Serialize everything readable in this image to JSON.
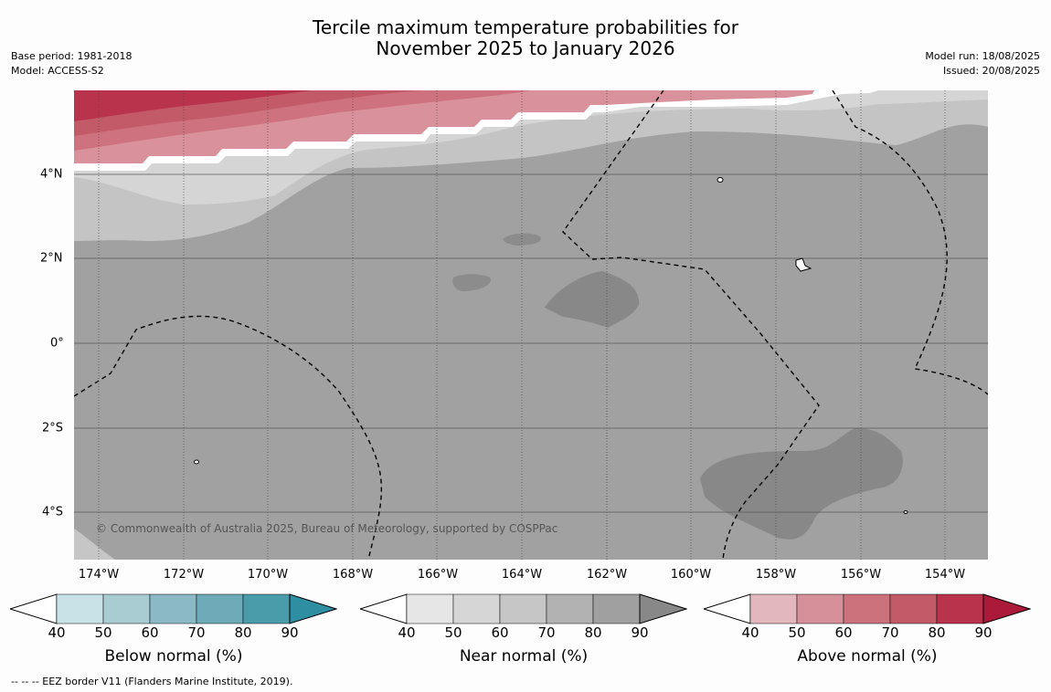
{
  "title_line1": "Tercile maximum temperature probabilities for",
  "title_line2": "November 2025 to January 2026",
  "meta_left": [
    "Base period: 1981-2018",
    "Model: ACCESS-S2"
  ],
  "meta_right": [
    "Model run: 18/08/2025",
    "Issued: 20/08/2025"
  ],
  "copyright": "© Commonwealth of Australia 2025, Bureau of Meteorology, supported by COSPPac",
  "footnote": "--  --  -- EEZ border V11 (Flanders Marine Institute, 2019).",
  "x_ticks": [
    "174°W",
    "172°W",
    "170°W",
    "168°W",
    "166°W",
    "164°W",
    "162°W",
    "160°W",
    "158°W",
    "156°W",
    "154°W"
  ],
  "y_ticks": [
    "4°N",
    "2°N",
    "0°",
    "2°S",
    "4°S"
  ],
  "colorbars": [
    {
      "label": "Below normal (%)",
      "ticks": [
        "40",
        "50",
        "60",
        "70",
        "80",
        "90"
      ],
      "colors": [
        "#ffffff",
        "#c9e2e8",
        "#a9cbd2",
        "#8bb9c5",
        "#6dabb8",
        "#4a9cab",
        "#2e8fa2"
      ]
    },
    {
      "label": "Near normal (%)",
      "ticks": [
        "40",
        "50",
        "60",
        "70",
        "80",
        "90"
      ],
      "colors": [
        "#ffffff",
        "#e6e6e6",
        "#d6d6d6",
        "#c6c6c6",
        "#b2b2b2",
        "#a0a0a0",
        "#888888"
      ]
    },
    {
      "label": "Above normal (%)",
      "ticks": [
        "40",
        "50",
        "60",
        "70",
        "80",
        "90"
      ],
      "colors": [
        "#ffffff",
        "#e2b8bd",
        "#d6909a",
        "#cc727d",
        "#c35a68",
        "#b8334b",
        "#ab1a3a"
      ]
    }
  ]
}
